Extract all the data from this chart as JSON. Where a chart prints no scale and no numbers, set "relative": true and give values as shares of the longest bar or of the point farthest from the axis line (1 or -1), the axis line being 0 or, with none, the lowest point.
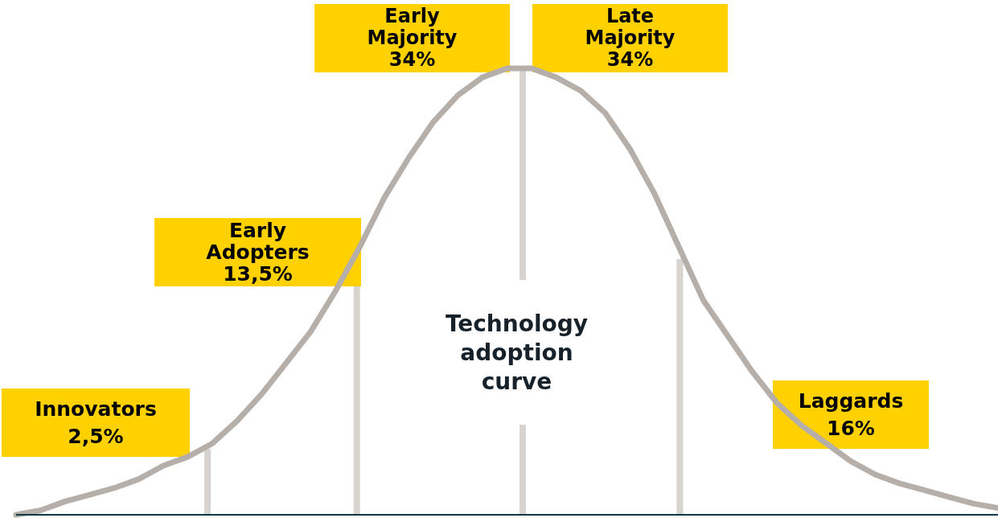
{
  "chart_data": {
    "type": "line",
    "title": "Technology adoption curve",
    "relative": true,
    "categories": [
      null,
      null,
      null,
      null,
      null,
      null,
      null,
      null,
      null,
      null,
      null,
      null,
      null,
      null,
      null,
      null,
      null,
      null,
      null,
      null,
      null,
      null,
      null,
      null,
      null,
      null,
      null,
      null,
      null,
      null,
      null,
      null,
      null,
      null,
      null,
      null,
      null,
      null,
      null,
      null,
      null
    ],
    "series": [
      {
        "color": "#b5aea9",
        "values": [
          0,
          0.01,
          0.03,
          0.045,
          0.06,
          0.08,
          0.11,
          0.13,
          0.16,
          0.21,
          0.27,
          0.34,
          0.41,
          0.5,
          0.6,
          0.71,
          0.8,
          0.88,
          0.94,
          0.98,
          1,
          1,
          0.98,
          0.95,
          0.9,
          0.82,
          0.72,
          0.6,
          0.48,
          0.4,
          0.32,
          0.25,
          0.2,
          0.16,
          0.12,
          0.09,
          0.07,
          0.055,
          0.04,
          0.025,
          0.015
        ]
      }
    ],
    "annotations": [
      "Innovators 2,5%",
      "Early Adopters 13,5%",
      "Early Majority 34%",
      "Late Majority 34%",
      "Laggards 16%"
    ],
    "grid": false,
    "marker": "none",
    "line_style": "solid"
  }
}
